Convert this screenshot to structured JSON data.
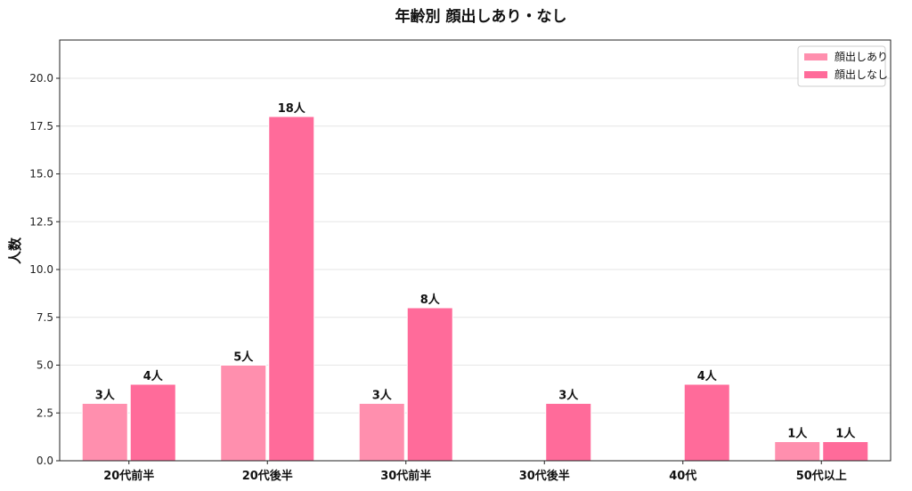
{
  "chart_data": {
    "type": "bar",
    "title": "年齢別 顔出しあり・なし",
    "ylabel": "人数",
    "xlabel": "",
    "ylim": [
      0,
      22
    ],
    "yticks": [
      "0.0",
      "2.5",
      "5.0",
      "7.5",
      "10.0",
      "12.5",
      "15.0",
      "17.5",
      "20.0"
    ],
    "grid": true,
    "legend": "top-right",
    "categories": [
      "20代前半",
      "20代後半",
      "30代前半",
      "30代後半",
      "40代",
      "50代以上"
    ],
    "series": [
      {
        "name": "顔出しあり",
        "color": "#FF8FAE",
        "values": [
          3,
          5,
          3,
          0,
          0,
          1
        ],
        "labels": [
          "3人",
          "5人",
          "3人",
          "",
          "",
          "1人"
        ]
      },
      {
        "name": "顔出しなし",
        "color": "#FF6B9A",
        "values": [
          4,
          18,
          8,
          3,
          4,
          1
        ],
        "labels": [
          "4人",
          "18人",
          "8人",
          "3人",
          "4人",
          "1人"
        ]
      }
    ]
  }
}
